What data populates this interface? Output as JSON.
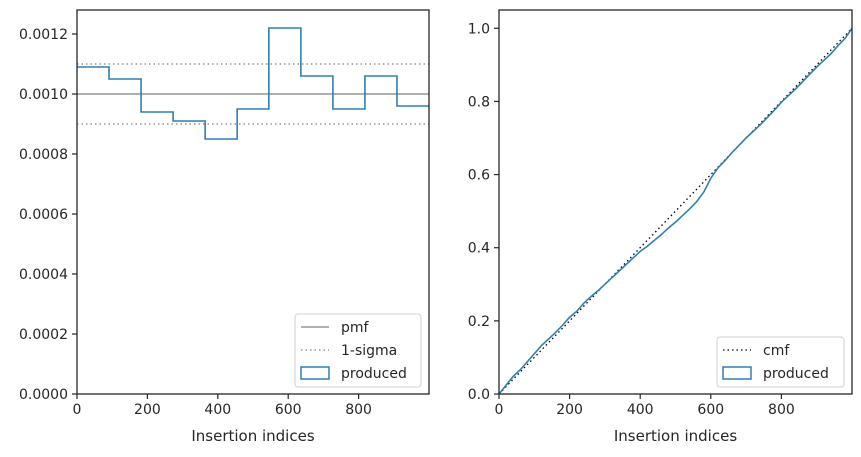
{
  "chart_data": [
    {
      "type": "line",
      "xlabel": "Insertion indices",
      "ylabel": "",
      "xlim": [
        0,
        1000
      ],
      "ylim": [
        0,
        0.00128
      ],
      "xticks": [
        0,
        200,
        400,
        600,
        800
      ],
      "xtick_labels": [
        "0",
        "200",
        "400",
        "600",
        "800"
      ],
      "yticks": [
        0,
        0.0002,
        0.0004,
        0.0006,
        0.0008,
        0.001,
        0.0012
      ],
      "ytick_labels": [
        "0.0000",
        "0.0002",
        "0.0004",
        "0.0006",
        "0.0008",
        "0.0010",
        "0.0012"
      ],
      "legend_position": "lower-right",
      "series": [
        {
          "name": "pmf",
          "style": "solid",
          "color": "#808080",
          "x": [
            0,
            1000
          ],
          "y": [
            0.001,
            0.001
          ]
        },
        {
          "name": "1-sigma",
          "style": "dotted",
          "color": "#808080",
          "x": [
            0,
            1000
          ],
          "y": [
            0.0011,
            0.0011
          ]
        },
        {
          "name": "1-sigma",
          "style": "dotted",
          "color": "#808080",
          "x": [
            0,
            1000
          ],
          "y": [
            0.0009,
            0.0009
          ],
          "legend": false
        },
        {
          "name": "produced",
          "style": "step",
          "color": "#2f7fb5",
          "bin_edges": [
            0,
            91,
            182,
            273,
            364,
            455,
            545,
            636,
            727,
            818,
            909,
            1000
          ],
          "values": [
            0.00109,
            0.00105,
            0.00094,
            0.00091,
            0.00085,
            0.00095,
            0.00122,
            0.00106,
            0.00095,
            0.00106,
            0.00096
          ]
        }
      ]
    },
    {
      "type": "line",
      "xlabel": "Insertion indices",
      "ylabel": "",
      "xlim": [
        0,
        1000
      ],
      "ylim": [
        0,
        1.05
      ],
      "xticks": [
        0,
        200,
        400,
        600,
        800
      ],
      "xtick_labels": [
        "0",
        "200",
        "400",
        "600",
        "800"
      ],
      "yticks": [
        0,
        0.2,
        0.4,
        0.6,
        0.8,
        1.0
      ],
      "ytick_labels": [
        "0.0",
        "0.2",
        "0.4",
        "0.6",
        "0.8",
        "1.0"
      ],
      "legend_position": "lower-right",
      "series": [
        {
          "name": "cmf",
          "style": "dotted",
          "color": "#000000",
          "x": [
            0,
            1000
          ],
          "y": [
            0,
            1
          ]
        },
        {
          "name": "produced",
          "style": "solid",
          "color": "#2f7fb5",
          "x": [
            0,
            10,
            25,
            40,
            60,
            80,
            100,
            120,
            140,
            160,
            180,
            200,
            220,
            240,
            260,
            280,
            300,
            320,
            340,
            360,
            380,
            400,
            420,
            440,
            460,
            480,
            500,
            520,
            540,
            560,
            580,
            600,
            620,
            640,
            660,
            680,
            700,
            720,
            740,
            760,
            780,
            800,
            820,
            840,
            860,
            880,
            900,
            920,
            940,
            960,
            980,
            1000
          ],
          "y": [
            0,
            0.012,
            0.03,
            0.048,
            0.066,
            0.088,
            0.11,
            0.132,
            0.15,
            0.168,
            0.188,
            0.21,
            0.226,
            0.248,
            0.266,
            0.282,
            0.3,
            0.318,
            0.336,
            0.354,
            0.372,
            0.39,
            0.404,
            0.42,
            0.436,
            0.454,
            0.47,
            0.488,
            0.506,
            0.526,
            0.552,
            0.59,
            0.618,
            0.638,
            0.66,
            0.68,
            0.7,
            0.718,
            0.736,
            0.756,
            0.776,
            0.798,
            0.816,
            0.834,
            0.854,
            0.874,
            0.894,
            0.912,
            0.93,
            0.952,
            0.972,
            1.0
          ]
        }
      ]
    }
  ]
}
